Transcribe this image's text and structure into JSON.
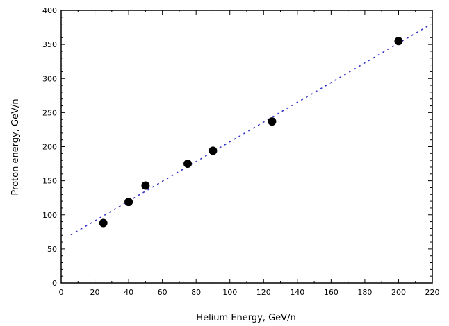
{
  "chart_data": {
    "type": "scatter",
    "xlabel": "Helium Energy, GeV/n",
    "ylabel": "Proton energy, GeV/n",
    "xlim": [
      0,
      220
    ],
    "ylim": [
      0,
      400
    ],
    "xticks": [
      "0",
      "20",
      "40",
      "60",
      "80",
      "100",
      "120",
      "140",
      "160",
      "180",
      "200",
      "220"
    ],
    "yticks": [
      "0",
      "50",
      "100",
      "150",
      "200",
      "250",
      "300",
      "350",
      "400"
    ],
    "grid": false,
    "legend": "none",
    "series": [
      {
        "kind": "points",
        "color": "#000000",
        "points": [
          {
            "x": 25,
            "y": 88
          },
          {
            "x": 40,
            "y": 119
          },
          {
            "x": 50,
            "y": 143
          },
          {
            "x": 75,
            "y": 175
          },
          {
            "x": 90,
            "y": 194
          },
          {
            "x": 125,
            "y": 237
          },
          {
            "x": 200,
            "y": 355
          }
        ]
      },
      {
        "kind": "fit-line",
        "style": "dotted",
        "color": "#3333cc",
        "x": [
          6,
          218
        ],
        "y": [
          71,
          378
        ]
      }
    ]
  }
}
